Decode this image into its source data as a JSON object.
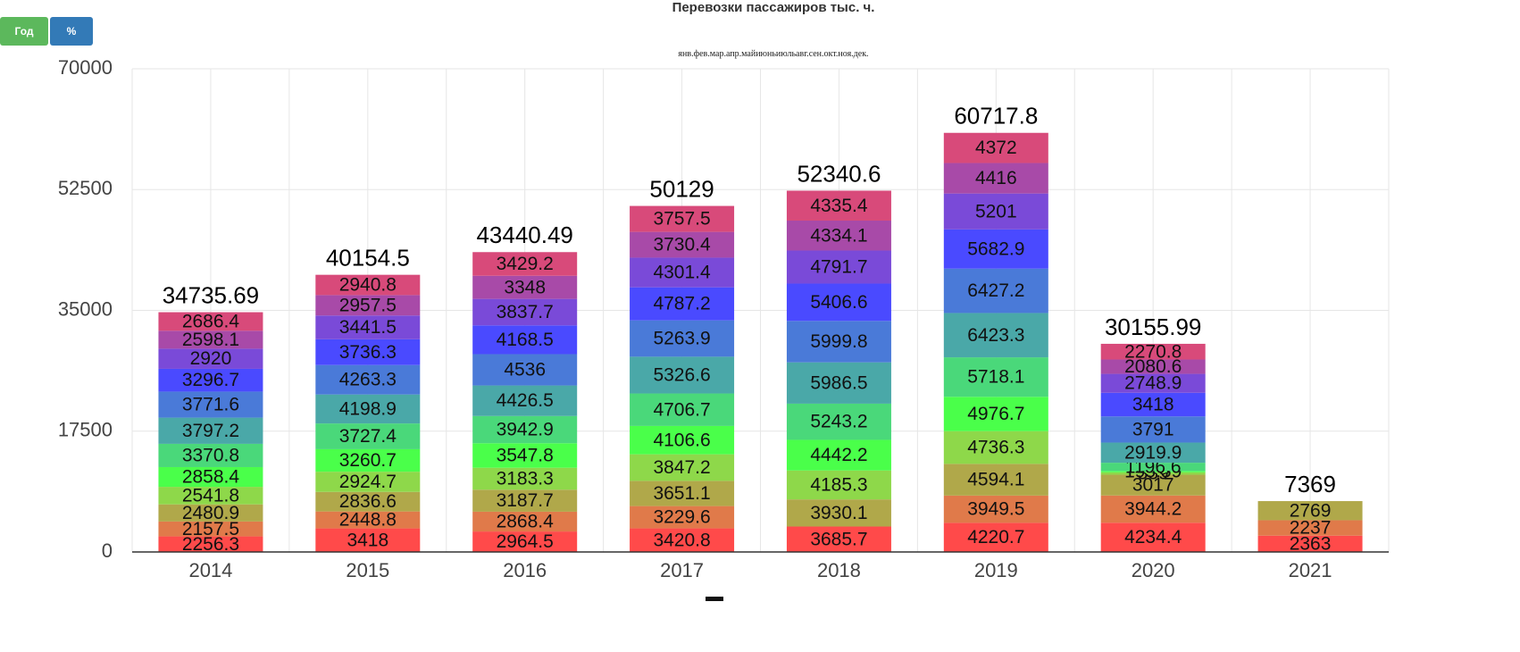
{
  "buttons": [
    "Год",
    "%"
  ],
  "chart_data": {
    "type": "stacked_bar",
    "title": "Перевозки пассажиров тыс. ч.",
    "categories": [
      "2014",
      "2015",
      "2016",
      "2017",
      "2018",
      "2019",
      "2020",
      "2021"
    ],
    "series": [
      {
        "name": "янв.",
        "color": "#ff4a4a",
        "values": [
          2256.3,
          3418,
          2964.5,
          3420.8,
          3685.7,
          4220.7,
          4234.4,
          2363
        ]
      },
      {
        "name": "фев.",
        "color": "#e07a4a",
        "values": [
          2157.5,
          2448.8,
          2868.4,
          3229.6,
          null,
          3949.5,
          3944.2,
          2237
        ]
      },
      {
        "name": "мар.",
        "color": "#b0a84a",
        "values": [
          2480.9,
          2836.6,
          3187.7,
          3651.1,
          3930.1,
          4594.1,
          3017,
          2769
        ]
      },
      {
        "name": "апр.",
        "color": "#8ed84a",
        "values": [
          2541.8,
          2924.7,
          3183.3,
          3847.2,
          4185.3,
          4736.3,
          339,
          null
        ]
      },
      {
        "name": "май",
        "color": "#4aff4a",
        "values": [
          2858.4,
          3260.7,
          3547.8,
          4106.6,
          4442.2,
          4976.7,
          195.59,
          null
        ]
      },
      {
        "name": "июнь",
        "color": "#4ad87a",
        "values": [
          3370.8,
          3727.4,
          3942.9,
          4706.7,
          5243.2,
          5718.1,
          1196.6,
          null
        ]
      },
      {
        "name": "июль",
        "color": "#4aa8a8",
        "values": [
          3797.2,
          4198.9,
          4426.5,
          5326.6,
          5986.5,
          6423.3,
          2919.9,
          null
        ]
      },
      {
        "name": "авг.",
        "color": "#4a7ad8",
        "values": [
          3771.6,
          4263.3,
          4536,
          5263.9,
          5999.8,
          6427.2,
          3791,
          null
        ]
      },
      {
        "name": "сен.",
        "color": "#4a4aff",
        "values": [
          3296.7,
          3736.3,
          4168.5,
          4787.2,
          5406.6,
          5682.9,
          3418,
          null
        ]
      },
      {
        "name": "окт.",
        "color": "#7a4ad8",
        "values": [
          2920,
          3441.5,
          3837.7,
          4301.4,
          4791.7,
          5201,
          2748.9,
          null
        ]
      },
      {
        "name": "ноя.",
        "color": "#a84aa8",
        "values": [
          2598.1,
          2957.5,
          3348,
          3730.4,
          4334.1,
          4416,
          2080.6,
          null
        ]
      },
      {
        "name": "дек.",
        "color": "#d84a7a",
        "values": [
          2686.4,
          2940.8,
          3429.2,
          3757.5,
          4335.4,
          4372,
          2270.8,
          null
        ]
      }
    ],
    "totals": [
      34735.69,
      40154.5,
      43440.49,
      50129,
      52340.6,
      60717.8,
      30155.99,
      7369
    ],
    "ylim": [
      0,
      70000
    ],
    "yticks": [
      0,
      17500,
      35000,
      52500,
      70000
    ],
    "grid": true
  }
}
